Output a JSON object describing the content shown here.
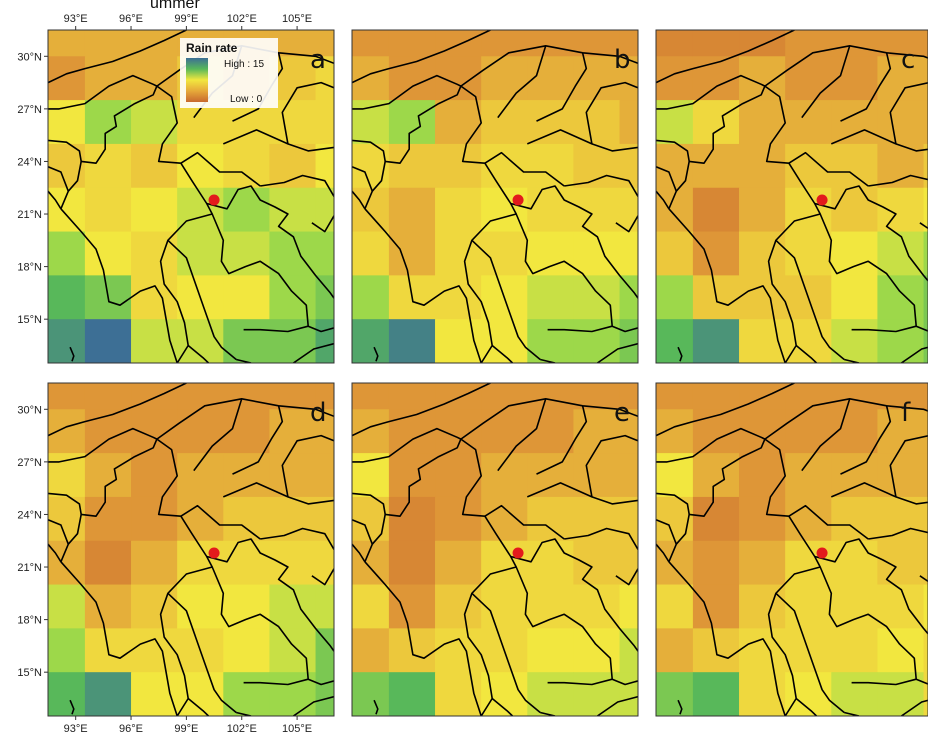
{
  "figure_title_visible_fragment": "ummer",
  "legend": {
    "title": "Rain rate",
    "high_label": "High : 15",
    "low_label": "Low : 0",
    "scale_min": 0,
    "scale_max": 15
  },
  "axes": {
    "lon_ticks": [
      "93°E",
      "96°E",
      "99°E",
      "102°E",
      "105°E"
    ],
    "lon_tick_values": [
      93,
      96,
      99,
      102,
      105
    ],
    "lat_ticks": [
      "30°N",
      "27°N",
      "24°N",
      "21°N",
      "18°N",
      "15°N"
    ],
    "lat_tick_values": [
      30,
      27,
      24,
      21,
      18,
      15
    ]
  },
  "map_extent": {
    "lon_min": 91.5,
    "lon_max": 107,
    "lat_min": 12.5,
    "lat_max": 31.5
  },
  "grid_cell_degrees": 2.5,
  "marker": {
    "lon": 100.5,
    "lat": 21.8,
    "color": "#e31a1c"
  },
  "panels": [
    {
      "letter": "a",
      "rain_grid": [
        [
          4,
          4,
          4,
          4,
          4,
          4,
          4
        ],
        [
          3,
          4,
          4,
          5,
          4,
          5,
          6
        ],
        [
          7,
          9,
          8,
          6,
          6,
          6,
          6
        ],
        [
          5,
          6,
          5,
          7,
          6,
          5,
          7
        ],
        [
          7,
          6,
          7,
          8,
          9,
          8,
          8
        ],
        [
          9,
          7,
          6,
          8,
          8,
          9,
          9
        ],
        [
          11,
          10,
          6,
          7,
          7,
          9,
          10
        ],
        [
          13,
          15,
          8,
          8,
          10,
          10,
          12
        ]
      ]
    },
    {
      "letter": "b",
      "rain_grid": [
        [
          3,
          3,
          3,
          3,
          3,
          3,
          3
        ],
        [
          4,
          3,
          3,
          4,
          4,
          4,
          4
        ],
        [
          8,
          9,
          4,
          5,
          5,
          5,
          4
        ],
        [
          6,
          5,
          5,
          6,
          6,
          5,
          5
        ],
        [
          5,
          4,
          6,
          7,
          6,
          6,
          6
        ],
        [
          6,
          4,
          6,
          6,
          7,
          7,
          7
        ],
        [
          9,
          6,
          6,
          7,
          8,
          8,
          9
        ],
        [
          12,
          14,
          7,
          7,
          9,
          9,
          10
        ]
      ]
    },
    {
      "letter": "c",
      "rain_grid": [
        [
          2,
          2,
          2,
          3,
          3,
          3,
          3
        ],
        [
          3,
          3,
          4,
          3,
          3,
          4,
          4
        ],
        [
          8,
          6,
          4,
          4,
          4,
          4,
          4
        ],
        [
          4,
          4,
          4,
          5,
          5,
          4,
          5
        ],
        [
          4,
          2,
          4,
          6,
          5,
          6,
          7
        ],
        [
          5,
          3,
          5,
          6,
          7,
          8,
          9
        ],
        [
          9,
          5,
          5,
          5,
          7,
          9,
          10
        ],
        [
          11,
          13,
          6,
          6,
          8,
          9,
          10
        ]
      ]
    },
    {
      "letter": "d",
      "rain_grid": [
        [
          3,
          3,
          3,
          3,
          3,
          3,
          3
        ],
        [
          4,
          3,
          3,
          3,
          3,
          4,
          4
        ],
        [
          6,
          4,
          3,
          4,
          4,
          4,
          4
        ],
        [
          5,
          3,
          3,
          4,
          5,
          5,
          5
        ],
        [
          4,
          2,
          4,
          6,
          6,
          6,
          6
        ],
        [
          8,
          4,
          5,
          7,
          7,
          8,
          8
        ],
        [
          9,
          6,
          6,
          6,
          7,
          8,
          10
        ],
        [
          11,
          13,
          7,
          7,
          9,
          9,
          10
        ]
      ]
    },
    {
      "letter": "e",
      "rain_grid": [
        [
          3,
          3,
          3,
          3,
          3,
          3,
          3
        ],
        [
          4,
          3,
          3,
          3,
          3,
          4,
          4
        ],
        [
          7,
          3,
          3,
          4,
          4,
          4,
          4
        ],
        [
          5,
          2,
          3,
          4,
          5,
          5,
          5
        ],
        [
          4,
          2,
          4,
          6,
          6,
          5,
          5
        ],
        [
          6,
          3,
          5,
          6,
          6,
          6,
          7
        ],
        [
          4,
          5,
          6,
          6,
          7,
          7,
          8
        ],
        [
          10,
          11,
          6,
          7,
          8,
          8,
          8
        ]
      ]
    },
    {
      "letter": "f",
      "rain_grid": [
        [
          3,
          3,
          3,
          3,
          3,
          3,
          3
        ],
        [
          4,
          3,
          3,
          3,
          3,
          4,
          4
        ],
        [
          7,
          4,
          3,
          4,
          4,
          4,
          4
        ],
        [
          5,
          2,
          3,
          4,
          5,
          5,
          5
        ],
        [
          4,
          3,
          4,
          6,
          6,
          5,
          5
        ],
        [
          6,
          3,
          5,
          6,
          6,
          6,
          7
        ],
        [
          4,
          5,
          6,
          6,
          6,
          7,
          6
        ],
        [
          10,
          11,
          6,
          7,
          8,
          8,
          6
        ]
      ]
    }
  ],
  "colors": {
    "low": "#c8692e",
    "mid_low": "#e6a93a",
    "mid": "#f2e73f",
    "mid_high": "#9dd84a",
    "high_green": "#58b85a",
    "high": "#3d6f95",
    "border": "#000000",
    "panel_frame": "#333333"
  }
}
